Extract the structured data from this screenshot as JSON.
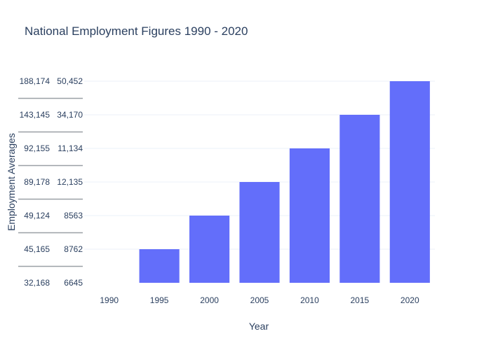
{
  "chart_data": {
    "type": "bar",
    "title": "National Employment Figures 1990 - 2020",
    "xlabel": "Year",
    "ylabel": "Employment Averages",
    "categories": [
      "1990",
      "1995",
      "2000",
      "2005",
      "2010",
      "2015",
      "2020"
    ],
    "values": [
      0,
      1,
      2,
      3,
      4,
      5,
      6
    ],
    "ylim": [
      0,
      6
    ],
    "y_tick_labels": [
      [
        "32,168",
        "6645"
      ],
      [
        "45,165",
        "8762"
      ],
      [
        "49,124",
        "8563"
      ],
      [
        "89,178",
        "12,135"
      ],
      [
        "92,155",
        "11,134"
      ],
      [
        "143,145",
        "34,170"
      ],
      [
        "188,174",
        "50,452"
      ]
    ],
    "bar_color": "#636efa",
    "grid": true,
    "legend": "none"
  }
}
